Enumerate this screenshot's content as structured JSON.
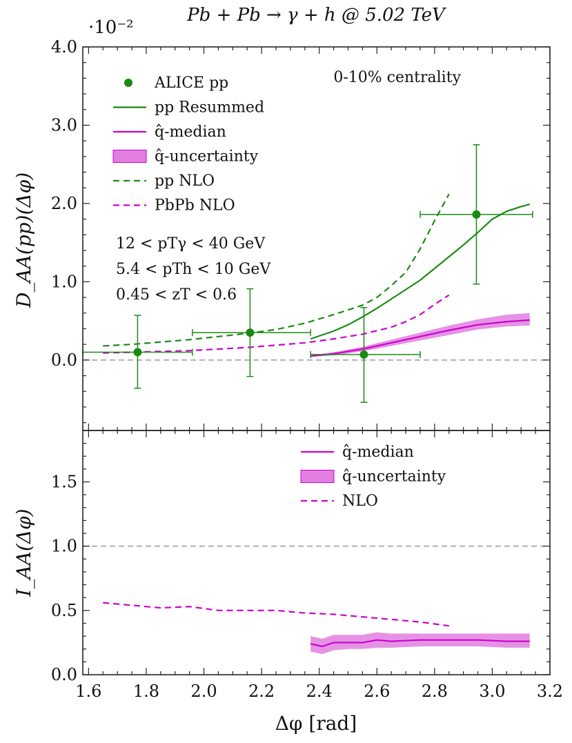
{
  "title": "Pb + Pb → γ + h @ 5.02 TeV",
  "colors": {
    "green": "#1a8a12",
    "magenta": "#cc00cc",
    "band": "#e07fe0",
    "ref_line": "#999999"
  },
  "chart_data": [
    {
      "type": "line",
      "panel": "top",
      "ylabel": "D_AA(pp)(Δφ)",
      "xlim": [
        1.58,
        3.2
      ],
      "ylim": [
        -0.9,
        4.0
      ],
      "y_scale_label": "·10⁻²",
      "y_ticks": [
        "0.0",
        "1.0",
        "2.0",
        "3.0",
        "4.0"
      ],
      "centrality": "0-10% centrality",
      "cuts": [
        "12 < pTγ < 40 GeV",
        "5.4 < pTh < 10 GeV",
        "0.45 < zT < 0.6"
      ],
      "legend": [
        "ALICE pp",
        "pp Resummed",
        "q̂-median",
        "q̂-uncertainty",
        "pp NLO",
        "PbPb NLO"
      ],
      "ref_line_y": 0.0,
      "series": [
        {
          "name": "ALICE pp",
          "kind": "points",
          "color": "#1a8a12",
          "x": [
            1.77,
            2.16,
            2.555,
            2.945
          ],
          "y": [
            0.1,
            0.35,
            0.07,
            1.86
          ],
          "xerr": [
            [
              1.58,
              1.96
            ],
            [
              1.96,
              2.37
            ],
            [
              2.37,
              2.75
            ],
            [
              2.75,
              3.14
            ]
          ],
          "yerr": [
            [
              -0.36,
              0.57
            ],
            [
              -0.21,
              0.91
            ],
            [
              -0.54,
              0.67
            ],
            [
              0.97,
              2.75
            ]
          ]
        },
        {
          "name": "pp Resummed",
          "kind": "line",
          "color": "#1a8a12",
          "dash": false,
          "x": [
            2.37,
            2.45,
            2.5,
            2.55,
            2.6,
            2.65,
            2.7,
            2.75,
            2.8,
            2.85,
            2.9,
            2.95,
            3.0,
            3.05,
            3.1,
            3.13
          ],
          "y": [
            0.27,
            0.37,
            0.45,
            0.55,
            0.66,
            0.78,
            0.9,
            1.02,
            1.17,
            1.32,
            1.47,
            1.63,
            1.8,
            1.9,
            1.96,
            1.99
          ]
        },
        {
          "name": "q̂-median",
          "kind": "line",
          "color": "#cc00cc",
          "dash": false,
          "x": [
            2.37,
            2.45,
            2.55,
            2.65,
            2.75,
            2.85,
            2.95,
            3.05,
            3.13
          ],
          "y": [
            0.05,
            0.08,
            0.14,
            0.22,
            0.3,
            0.38,
            0.45,
            0.49,
            0.51
          ]
        },
        {
          "name": "q̂-uncertainty",
          "kind": "band",
          "color": "#e07fe0",
          "x": [
            2.37,
            2.45,
            2.55,
            2.65,
            2.75,
            2.85,
            2.95,
            3.05,
            3.13
          ],
          "lower": [
            0.04,
            0.06,
            0.11,
            0.18,
            0.25,
            0.32,
            0.39,
            0.43,
            0.44
          ],
          "upper": [
            0.06,
            0.1,
            0.17,
            0.26,
            0.35,
            0.44,
            0.52,
            0.58,
            0.6
          ]
        },
        {
          "name": "pp NLO",
          "kind": "line",
          "color": "#1a8a12",
          "dash": true,
          "x": [
            1.65,
            1.75,
            1.85,
            1.95,
            2.05,
            2.15,
            2.25,
            2.35,
            2.45,
            2.55,
            2.6,
            2.65,
            2.7,
            2.75,
            2.8,
            2.85
          ],
          "y": [
            0.18,
            0.2,
            0.23,
            0.26,
            0.3,
            0.34,
            0.39,
            0.47,
            0.58,
            0.7,
            0.8,
            0.95,
            1.12,
            1.42,
            1.78,
            2.12
          ]
        },
        {
          "name": "PbPb NLO",
          "kind": "line",
          "color": "#cc00cc",
          "dash": true,
          "x": [
            1.65,
            1.75,
            1.85,
            1.95,
            2.05,
            2.15,
            2.25,
            2.35,
            2.45,
            2.55,
            2.65,
            2.7,
            2.75,
            2.8,
            2.85
          ],
          "y": [
            0.09,
            0.1,
            0.11,
            0.12,
            0.14,
            0.16,
            0.19,
            0.22,
            0.27,
            0.33,
            0.42,
            0.49,
            0.58,
            0.71,
            0.83
          ]
        }
      ]
    },
    {
      "type": "line",
      "panel": "bottom",
      "ylabel": "I_AA(Δφ)",
      "xlabel": "Δφ [rad]",
      "xlim": [
        1.58,
        3.2
      ],
      "ylim": [
        0.0,
        1.9
      ],
      "x_ticks": [
        "1.6",
        "1.8",
        "2.0",
        "2.2",
        "2.4",
        "2.6",
        "2.8",
        "3.0",
        "3.2"
      ],
      "y_ticks": [
        "0.0",
        "0.5",
        "1.0",
        "1.5"
      ],
      "legend": [
        "q̂-median",
        "q̂-uncertainty",
        "NLO"
      ],
      "ref_line_y": 1.0,
      "series": [
        {
          "name": "q̂-median",
          "kind": "line",
          "color": "#cc00cc",
          "dash": false,
          "x": [
            2.37,
            2.41,
            2.45,
            2.5,
            2.55,
            2.6,
            2.65,
            2.75,
            2.85,
            2.95,
            3.05,
            3.13
          ],
          "y": [
            0.24,
            0.22,
            0.25,
            0.25,
            0.25,
            0.27,
            0.26,
            0.27,
            0.27,
            0.27,
            0.26,
            0.26
          ]
        },
        {
          "name": "q̂-uncertainty",
          "kind": "band",
          "color": "#e07fe0",
          "x": [
            2.37,
            2.41,
            2.45,
            2.5,
            2.55,
            2.6,
            2.65,
            2.75,
            2.85,
            2.95,
            3.05,
            3.13
          ],
          "lower": [
            0.18,
            0.16,
            0.19,
            0.2,
            0.2,
            0.21,
            0.21,
            0.22,
            0.22,
            0.22,
            0.21,
            0.21
          ],
          "upper": [
            0.3,
            0.28,
            0.31,
            0.31,
            0.31,
            0.33,
            0.32,
            0.32,
            0.32,
            0.32,
            0.32,
            0.32
          ]
        },
        {
          "name": "NLO",
          "kind": "line",
          "color": "#cc00cc",
          "dash": true,
          "x": [
            1.65,
            1.75,
            1.85,
            1.95,
            2.05,
            2.15,
            2.25,
            2.35,
            2.45,
            2.55,
            2.65,
            2.75,
            2.85
          ],
          "y": [
            0.56,
            0.54,
            0.52,
            0.53,
            0.5,
            0.5,
            0.5,
            0.48,
            0.47,
            0.45,
            0.43,
            0.41,
            0.38
          ]
        }
      ]
    }
  ]
}
